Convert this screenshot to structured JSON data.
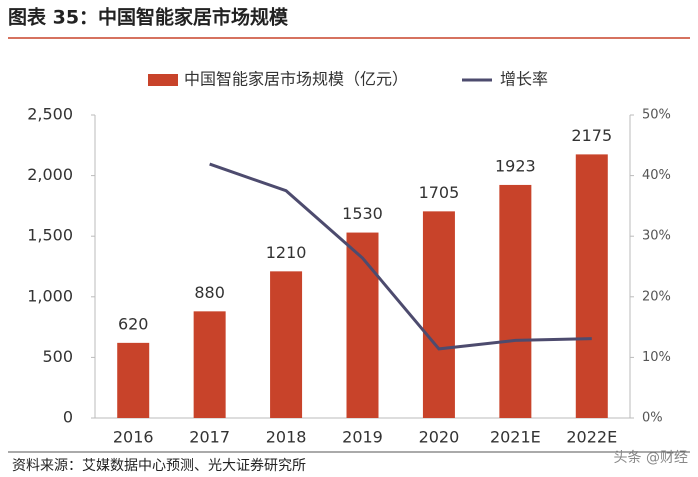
{
  "chart_data": {
    "type": "bar-line",
    "title": "图表 35：中国智能家居市场规模",
    "source": "资料来源：艾媒数据中心预测、光大证券研究所",
    "watermark": "头条 @财经",
    "categories": [
      "2016",
      "2017",
      "2018",
      "2019",
      "2020",
      "2021E",
      "2022E"
    ],
    "series": [
      {
        "name": "中国智能家居市场规模（亿元）",
        "color": "#c8432a",
        "values": [
          620,
          880,
          1210,
          1530,
          1705,
          1923,
          2175
        ]
      },
      {
        "name": "增长率",
        "color": "#4d4b6e",
        "axis": "y2",
        "values": [
          null,
          41.9,
          37.5,
          26.4,
          11.4,
          12.8,
          13.1
        ]
      }
    ],
    "ylim": [
      0,
      2500
    ],
    "yticks": [
      0,
      500,
      {
        "value": 1000,
        "label": "1,000"
      },
      {
        "value": 1500,
        "label": "1,500"
      },
      {
        "value": 2000,
        "label": "2,000"
      },
      {
        "value": 2500,
        "label": "2,500"
      }
    ],
    "y2lim": [
      0,
      50
    ],
    "y2ticks": [
      {
        "value": 0,
        "label": "0%"
      },
      {
        "value": 10,
        "label": "10%"
      },
      {
        "value": 20,
        "label": "20%"
      },
      {
        "value": 30,
        "label": "30%"
      },
      {
        "value": 40,
        "label": "40%"
      },
      {
        "value": 50,
        "label": "50%"
      }
    ]
  }
}
